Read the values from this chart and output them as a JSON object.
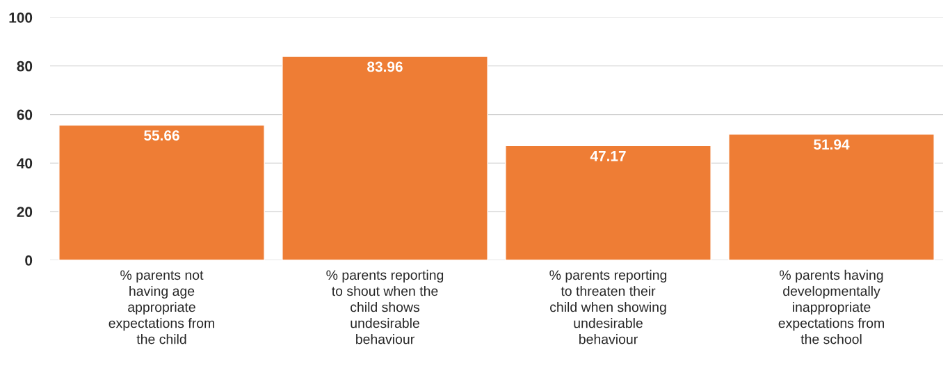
{
  "chart_data": {
    "type": "bar",
    "categories": [
      "% parents not\nhaving age\nappropriate\nexpectations from\nthe child",
      "% parents reporting\nto shout when the\nchild shows\nundesirable\nbehaviour",
      "% parents reporting\nto threaten their\nchild when showing\nundesirable\nbehaviour",
      "% parents having\ndevelopmentally\ninappropriate\nexpectations from\nthe school"
    ],
    "values": [
      55.66,
      83.96,
      47.17,
      51.94
    ],
    "color": "#ee7d35",
    "ylim": [
      0,
      100
    ],
    "yticks": [
      0,
      20,
      40,
      60,
      80,
      100
    ],
    "grid": "y",
    "data_labels": true
  }
}
